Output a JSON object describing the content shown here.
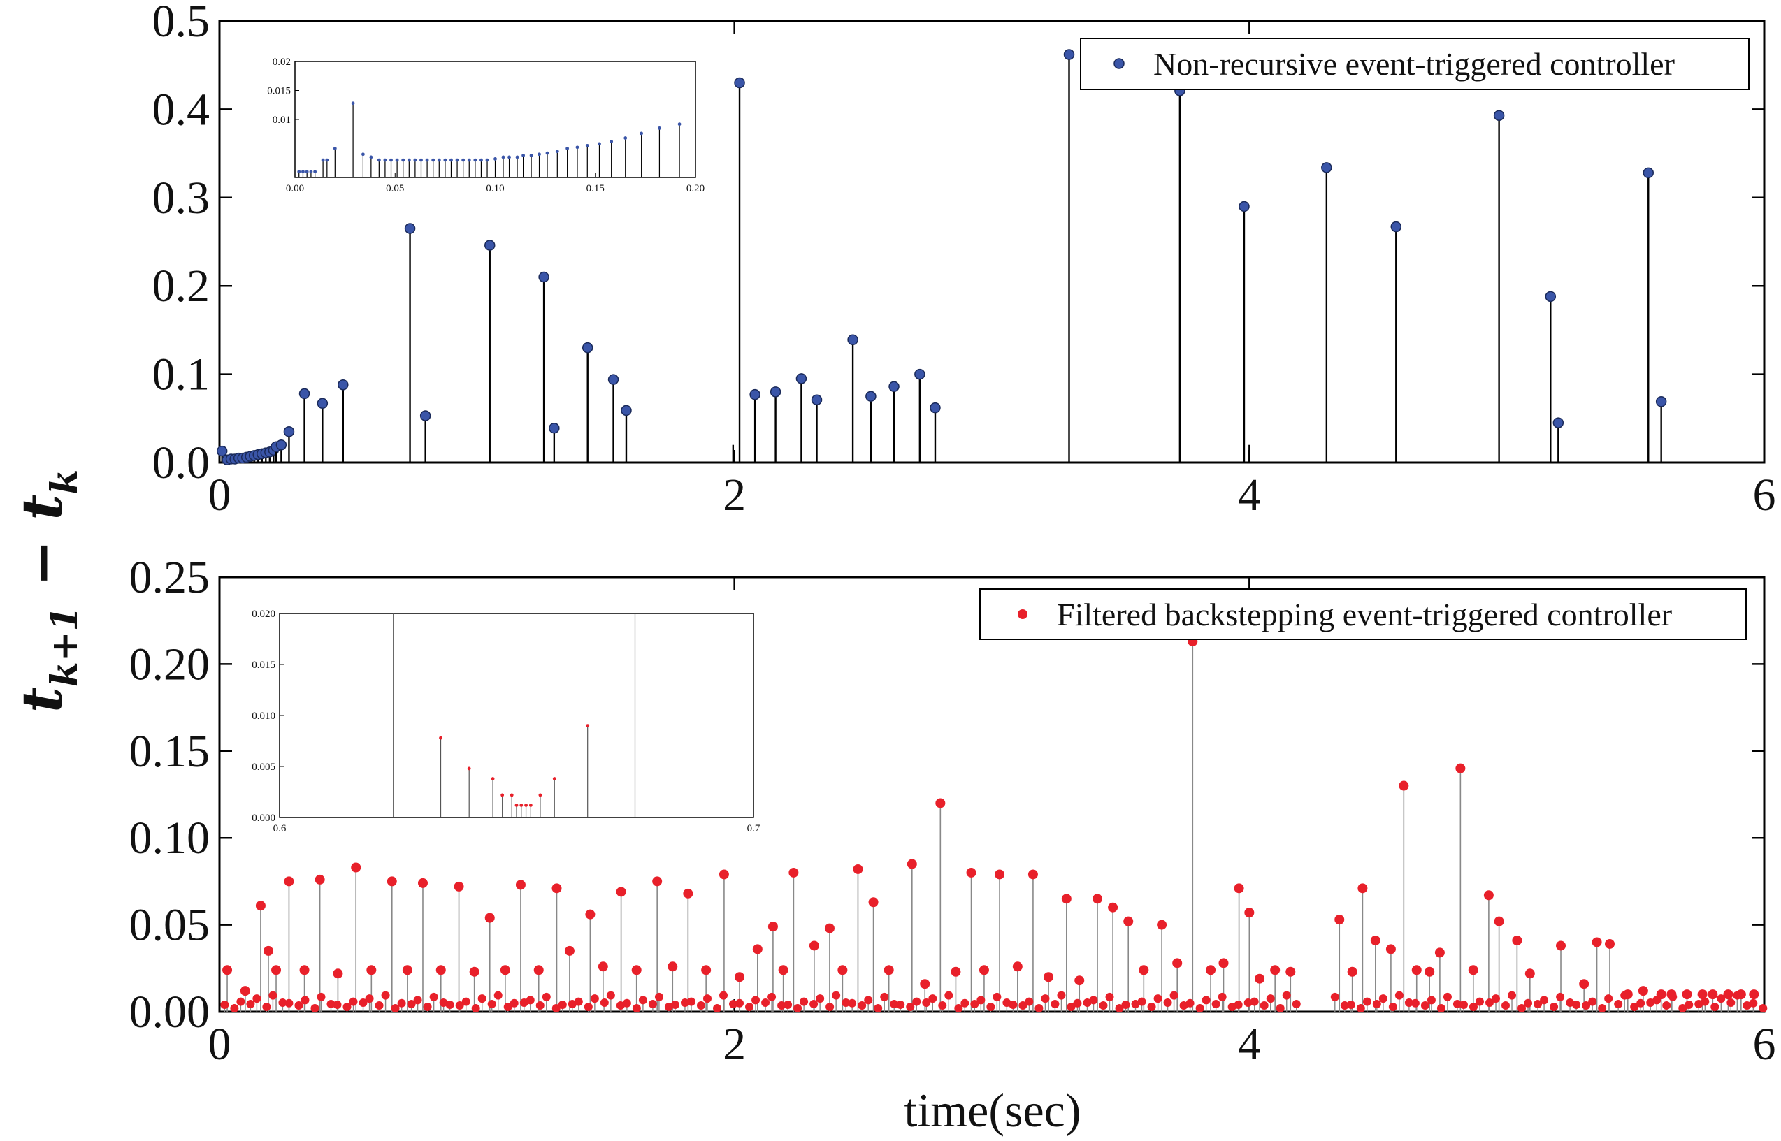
{
  "ylabel": {
    "main": "t",
    "sub1": "k+1",
    "minus": " − t",
    "sub2": "k"
  },
  "xlabel": "time(sec)",
  "chart_data": [
    {
      "type": "stem",
      "title": "",
      "legend": "Non-recursive event-triggered controller",
      "color": "#3a55a8",
      "xlim": [
        0,
        6
      ],
      "ylim": [
        0,
        0.5
      ],
      "xticks": [
        "0",
        "2",
        "4",
        "6"
      ],
      "yticks": [
        "0.0",
        "0.1",
        "0.2",
        "0.3",
        "0.4",
        "0.5"
      ],
      "x": [
        0.01,
        0.03,
        0.045,
        0.06,
        0.075,
        0.09,
        0.105,
        0.12,
        0.135,
        0.15,
        0.165,
        0.18,
        0.195,
        0.21,
        0.22,
        0.24,
        0.27,
        0.33,
        0.4,
        0.48,
        0.74,
        0.8,
        1.05,
        1.26,
        1.3,
        1.43,
        1.53,
        1.58,
        2.02,
        2.08,
        2.16,
        2.26,
        2.32,
        2.46,
        2.53,
        2.62,
        2.72,
        2.78,
        3.3,
        3.73,
        3.98,
        4.3,
        4.57,
        4.97,
        5.17,
        5.2,
        5.55,
        5.6
      ],
      "y": [
        0.013,
        0.003,
        0.004,
        0.004,
        0.005,
        0.005,
        0.006,
        0.007,
        0.008,
        0.009,
        0.01,
        0.011,
        0.012,
        0.014,
        0.018,
        0.02,
        0.035,
        0.078,
        0.067,
        0.088,
        0.265,
        0.053,
        0.246,
        0.21,
        0.039,
        0.13,
        0.094,
        0.059,
        0.43,
        0.077,
        0.08,
        0.095,
        0.071,
        0.139,
        0.075,
        0.086,
        0.1,
        0.062,
        0.462,
        0.421,
        0.29,
        0.334,
        0.267,
        0.393,
        0.188,
        0.045,
        0.328,
        0.069
      ],
      "extra_bars": [
        {
          "x": 1.995,
          "y": 0.02
        },
        {
          "x": 4.0,
          "y": 0.02
        }
      ],
      "inset": {
        "xlim": [
          0,
          0.2
        ],
        "ylim": [
          0,
          0.02
        ],
        "xticks": [
          "0.00",
          "0.05",
          "0.10",
          "0.15",
          "0.20"
        ],
        "yticks": [
          "0.01",
          "0.015",
          "0.02"
        ],
        "x": [
          0.002,
          0.004,
          0.006,
          0.008,
          0.01,
          0.014,
          0.016,
          0.02,
          0.029,
          0.034,
          0.038,
          0.042,
          0.045,
          0.048,
          0.051,
          0.054,
          0.057,
          0.06,
          0.063,
          0.066,
          0.069,
          0.072,
          0.075,
          0.078,
          0.081,
          0.084,
          0.087,
          0.09,
          0.093,
          0.096,
          0.1,
          0.104,
          0.107,
          0.111,
          0.114,
          0.118,
          0.122,
          0.126,
          0.131,
          0.136,
          0.141,
          0.146,
          0.152,
          0.158,
          0.165,
          0.173,
          0.182,
          0.192
        ],
        "y": [
          0.001,
          0.001,
          0.001,
          0.001,
          0.001,
          0.003,
          0.003,
          0.005,
          0.0128,
          0.004,
          0.0035,
          0.003,
          0.003,
          0.003,
          0.003,
          0.003,
          0.003,
          0.003,
          0.003,
          0.003,
          0.003,
          0.003,
          0.003,
          0.003,
          0.003,
          0.003,
          0.003,
          0.003,
          0.003,
          0.003,
          0.0032,
          0.0035,
          0.0035,
          0.0035,
          0.0038,
          0.0038,
          0.004,
          0.0042,
          0.0045,
          0.005,
          0.0052,
          0.0055,
          0.0058,
          0.0062,
          0.0068,
          0.0076,
          0.0085,
          0.0092
        ]
      }
    },
    {
      "type": "stem",
      "title": "",
      "legend": "Filtered backstepping event-triggered controller",
      "color": "#e8202a",
      "xlim": [
        0,
        6
      ],
      "ylim": [
        0,
        0.25
      ],
      "xticks": [
        "0",
        "2",
        "4",
        "6"
      ],
      "yticks": [
        "0.00",
        "0.05",
        "0.10",
        "0.15",
        "0.20",
        "0.25"
      ],
      "x": [
        0.03,
        0.1,
        0.16,
        0.19,
        0.22,
        0.27,
        0.33,
        0.39,
        0.46,
        0.53,
        0.59,
        0.67,
        0.73,
        0.79,
        0.86,
        0.93,
        0.99,
        1.05,
        1.11,
        1.17,
        1.24,
        1.31,
        1.36,
        1.44,
        1.49,
        1.56,
        1.62,
        1.7,
        1.76,
        1.82,
        1.89,
        1.96,
        2.02,
        2.09,
        2.15,
        2.19,
        2.23,
        2.31,
        2.37,
        2.42,
        2.48,
        2.54,
        2.6,
        2.69,
        2.74,
        2.8,
        2.86,
        2.92,
        2.97,
        3.03,
        3.1,
        3.16,
        3.22,
        3.29,
        3.34,
        3.41,
        3.47,
        3.53,
        3.59,
        3.66,
        3.72,
        3.78,
        3.85,
        3.9,
        3.96,
        4.0,
        4.04,
        4.1,
        4.16,
        4.35,
        4.4,
        4.44,
        4.49,
        4.55,
        4.6,
        4.65,
        4.7,
        4.74,
        4.82,
        4.87,
        4.93,
        4.97,
        5.04,
        5.09,
        5.21,
        5.3,
        5.35,
        5.4,
        5.47,
        5.53,
        5.6,
        5.64,
        5.7,
        5.76,
        5.8,
        5.86,
        5.91,
        5.96
      ],
      "y": [
        0.024,
        0.012,
        0.061,
        0.035,
        0.024,
        0.075,
        0.024,
        0.076,
        0.022,
        0.083,
        0.024,
        0.075,
        0.024,
        0.074,
        0.024,
        0.072,
        0.023,
        0.054,
        0.024,
        0.073,
        0.024,
        0.071,
        0.035,
        0.056,
        0.026,
        0.069,
        0.024,
        0.075,
        0.026,
        0.068,
        0.024,
        0.079,
        0.02,
        0.036,
        0.049,
        0.024,
        0.08,
        0.038,
        0.048,
        0.024,
        0.082,
        0.063,
        0.024,
        0.085,
        0.016,
        0.12,
        0.023,
        0.08,
        0.024,
        0.079,
        0.026,
        0.079,
        0.02,
        0.065,
        0.018,
        0.065,
        0.06,
        0.052,
        0.024,
        0.05,
        0.028,
        0.213,
        0.024,
        0.028,
        0.071,
        0.057,
        0.019,
        0.024,
        0.023,
        0.053,
        0.023,
        0.071,
        0.041,
        0.036,
        0.13,
        0.024,
        0.023,
        0.034,
        0.14,
        0.024,
        0.067,
        0.052,
        0.041,
        0.022,
        0.038,
        0.016,
        0.04,
        0.039,
        0.01,
        0.012,
        0.01,
        0.01,
        0.01,
        0.01,
        0.01,
        0.01,
        0.01,
        0.01
      ],
      "inset": {
        "xlim": [
          0.6,
          0.7
        ],
        "ylim": [
          0,
          0.02
        ],
        "xticks": [
          "0.6",
          "0.7"
        ],
        "yticks": [
          "0.000",
          "0.005",
          "0.010",
          "0.015",
          "0.020"
        ],
        "vlines": [
          0.624,
          0.675
        ],
        "x": [
          0.634,
          0.64,
          0.645,
          0.647,
          0.649,
          0.65,
          0.651,
          0.652,
          0.653,
          0.655,
          0.658,
          0.665
        ],
        "y": [
          0.0078,
          0.0048,
          0.0038,
          0.0022,
          0.0022,
          0.0012,
          0.0012,
          0.0012,
          0.0012,
          0.0022,
          0.0038,
          0.009
        ]
      }
    }
  ]
}
